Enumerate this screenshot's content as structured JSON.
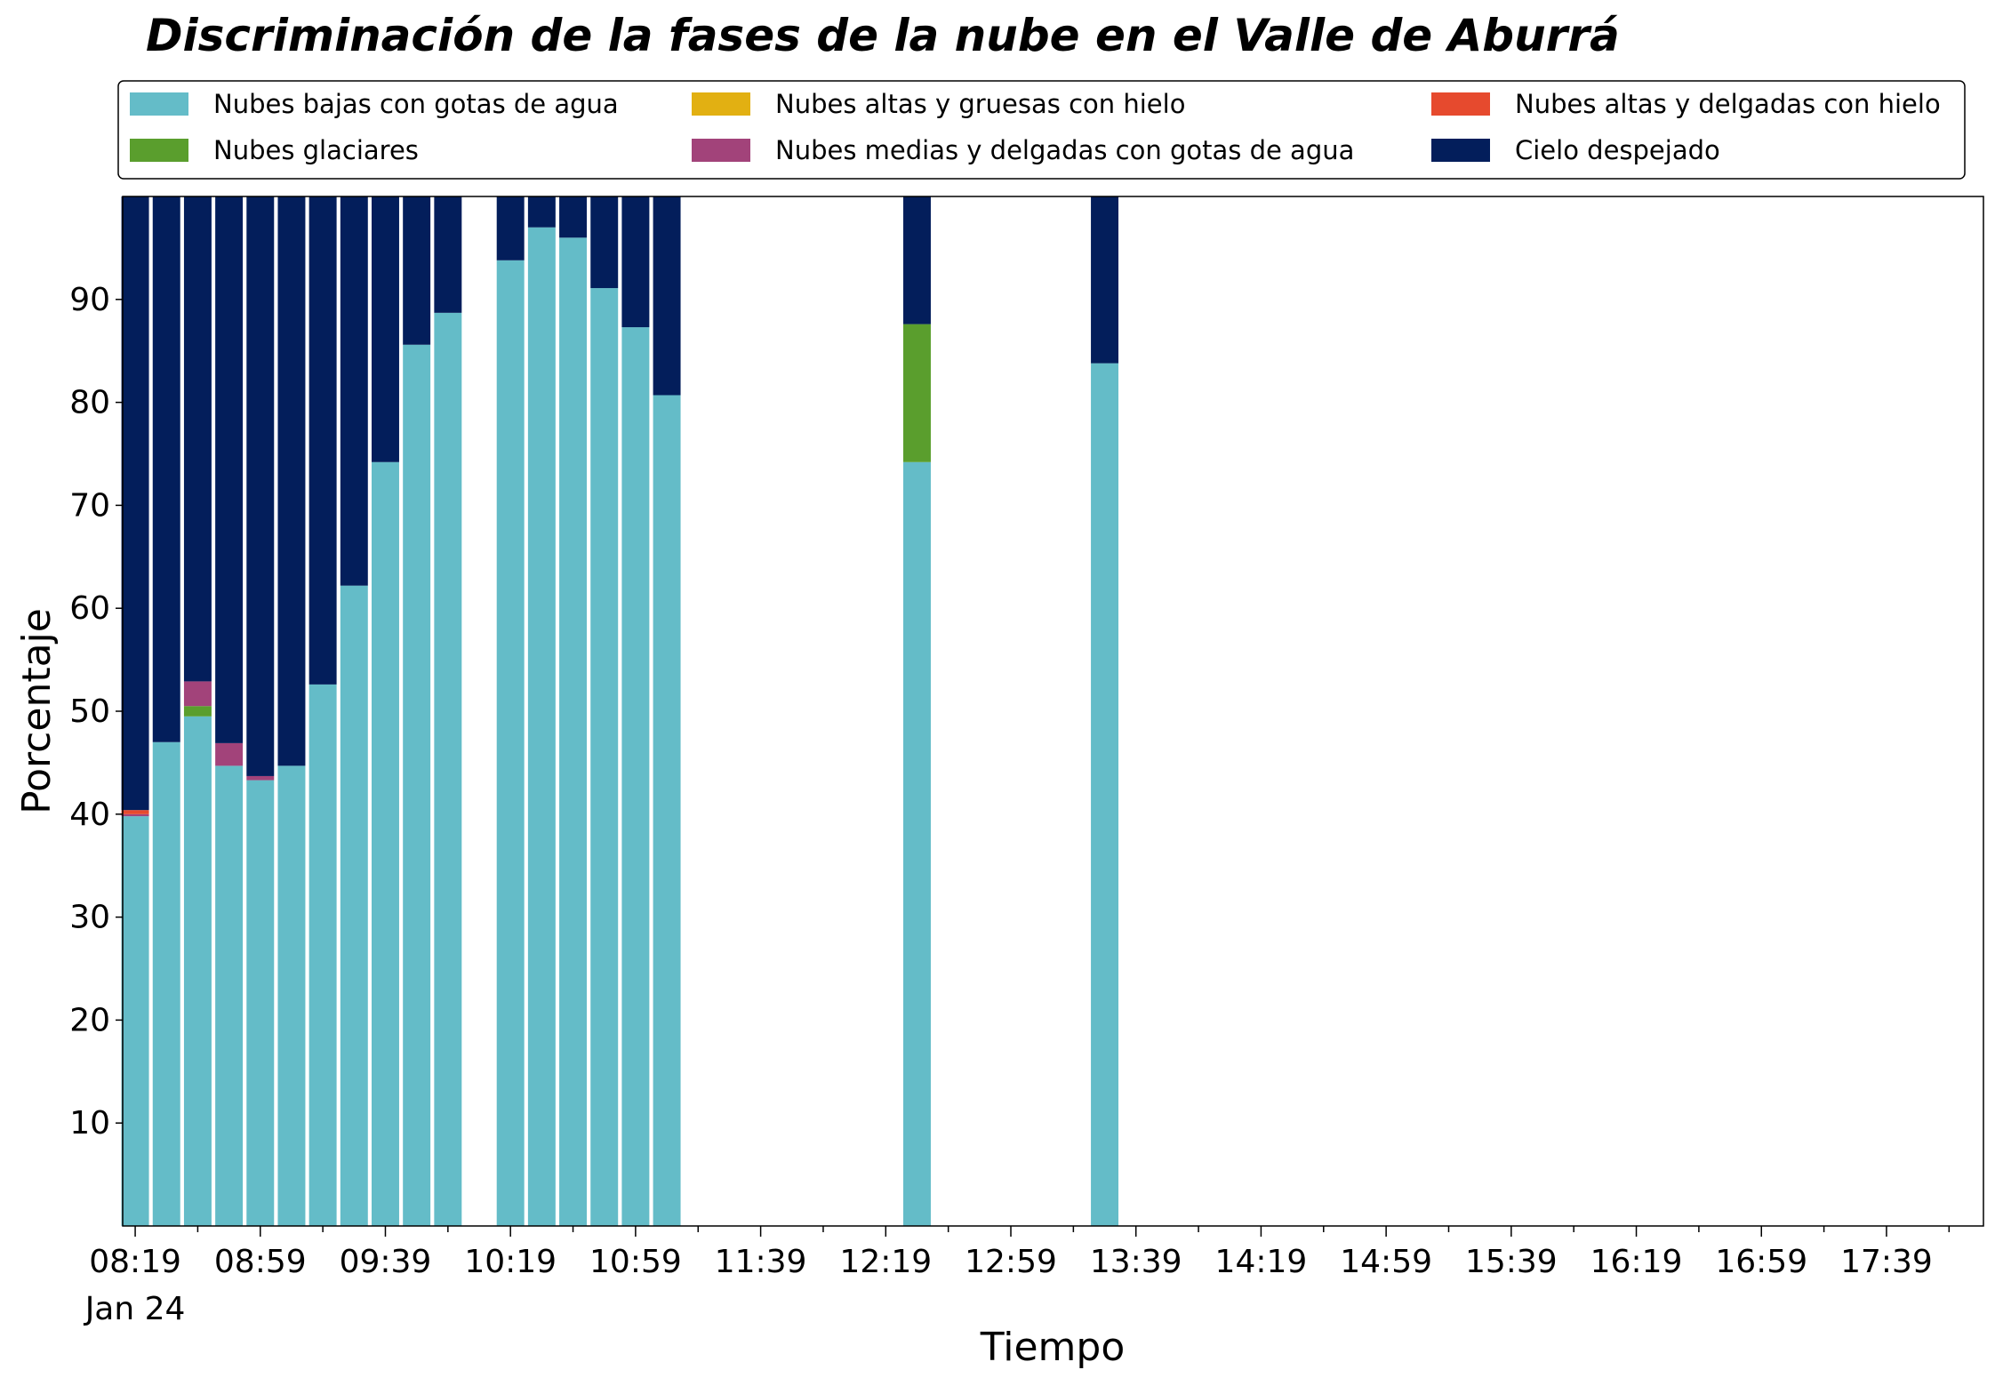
{
  "chart_data": {
    "type": "bar",
    "stacked": true,
    "title": "Discriminación de la fases de la nube en el Valle de Aburrá",
    "xlabel": "Tiempo",
    "ylabel": "Porcentaje",
    "ylim": [
      0,
      100
    ],
    "yticks": [
      10,
      20,
      30,
      40,
      50,
      60,
      70,
      80,
      90
    ],
    "x_interval_minutes": 10,
    "x_domain": [
      "08:15",
      "18:10"
    ],
    "xtick_labels": [
      "08:19",
      "08:59",
      "09:39",
      "10:19",
      "10:59",
      "11:39",
      "12:19",
      "12:59",
      "13:39",
      "14:19",
      "14:59",
      "15:39",
      "16:19",
      "16:59",
      "17:39"
    ],
    "xtick_date_label": "Jan 24",
    "legend_position": "top",
    "x": [
      "08:19",
      "08:29",
      "08:39",
      "08:49",
      "08:59",
      "09:09",
      "09:19",
      "09:29",
      "09:39",
      "09:49",
      "09:59",
      "10:19",
      "10:29",
      "10:39",
      "10:49",
      "10:59",
      "11:09",
      "12:29",
      "13:29"
    ],
    "series": [
      {
        "name": "Nubes bajas con gotas de agua",
        "color": "#64BCC8",
        "values": [
          39.8,
          47.0,
          49.5,
          44.7,
          43.3,
          44.7,
          52.6,
          62.2,
          74.2,
          85.6,
          88.7,
          93.8,
          97.0,
          96.0,
          91.1,
          87.3,
          80.7,
          74.2,
          83.8
        ]
      },
      {
        "name": "Nubes glaciares",
        "color": "#5A9E2D",
        "values": [
          0,
          0,
          1.0,
          0,
          0,
          0,
          0,
          0,
          0,
          0,
          0,
          0,
          0,
          0,
          0,
          0,
          0,
          13.4,
          0
        ]
      },
      {
        "name": "Nubes altas y gruesas con hielo",
        "color": "#E2B012",
        "values": [
          0,
          0,
          0,
          0,
          0,
          0,
          0,
          0,
          0,
          0,
          0,
          0,
          0,
          0,
          0,
          0,
          0,
          0,
          0
        ]
      },
      {
        "name": "Nubes medias y delgadas con gotas de agua",
        "color": "#A2437A",
        "values": [
          0.2,
          0,
          2.4,
          2.2,
          0.4,
          0,
          0,
          0,
          0,
          0,
          0,
          0,
          0,
          0,
          0,
          0,
          0,
          0,
          0
        ]
      },
      {
        "name": "Nubes altas y delgadas con hielo",
        "color": "#E64A2E",
        "values": [
          0.4,
          0,
          0,
          0,
          0,
          0,
          0,
          0,
          0,
          0,
          0,
          0,
          0,
          0,
          0,
          0,
          0,
          0,
          0
        ]
      },
      {
        "name": "Cielo despejado",
        "color": "#031E5B",
        "values": [
          59.6,
          53.0,
          47.1,
          53.1,
          56.3,
          55.3,
          47.4,
          37.8,
          25.8,
          14.4,
          11.3,
          6.2,
          3.0,
          4.0,
          8.9,
          12.7,
          19.3,
          12.4,
          16.2
        ]
      }
    ]
  }
}
